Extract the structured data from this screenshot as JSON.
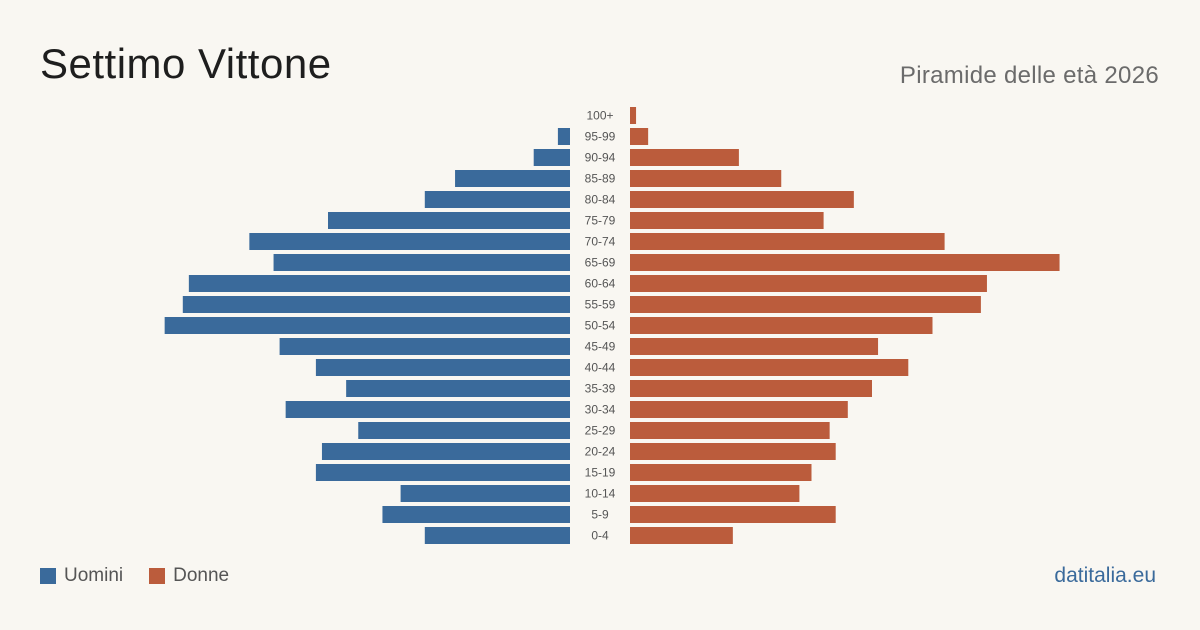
{
  "header": {
    "title": "Settimo Vittone",
    "subtitle": "Piramide delle età 2026"
  },
  "legend": {
    "men_label": "Uomini",
    "women_label": "Donne"
  },
  "source": {
    "label": "datitalia.eu"
  },
  "colors": {
    "men": "#3a6a9b",
    "women": "#bb5c3c",
    "background": "#f9f7f2"
  },
  "chart_data": {
    "type": "bar",
    "orientation": "horizontal-pyramid",
    "categories": [
      "100+",
      "95-99",
      "90-94",
      "85-89",
      "80-84",
      "75-79",
      "70-74",
      "65-69",
      "60-64",
      "55-59",
      "50-54",
      "45-49",
      "40-44",
      "35-39",
      "30-34",
      "25-29",
      "20-24",
      "15-19",
      "10-14",
      "5-9",
      "0-4"
    ],
    "series": [
      {
        "name": "Uomini",
        "side": "left",
        "values": [
          0,
          2,
          6,
          19,
          24,
          40,
          53,
          49,
          63,
          64,
          67,
          48,
          42,
          37,
          47,
          35,
          41,
          42,
          28,
          31,
          24
        ]
      },
      {
        "name": "Donne",
        "side": "right",
        "values": [
          1,
          3,
          18,
          25,
          37,
          32,
          52,
          71,
          59,
          58,
          50,
          41,
          46,
          40,
          36,
          33,
          34,
          30,
          28,
          34,
          17
        ]
      }
    ],
    "title": "Settimo Vittone",
    "subtitle": "Piramide delle età 2026",
    "legend_position": "bottom-left",
    "grid": false
  }
}
